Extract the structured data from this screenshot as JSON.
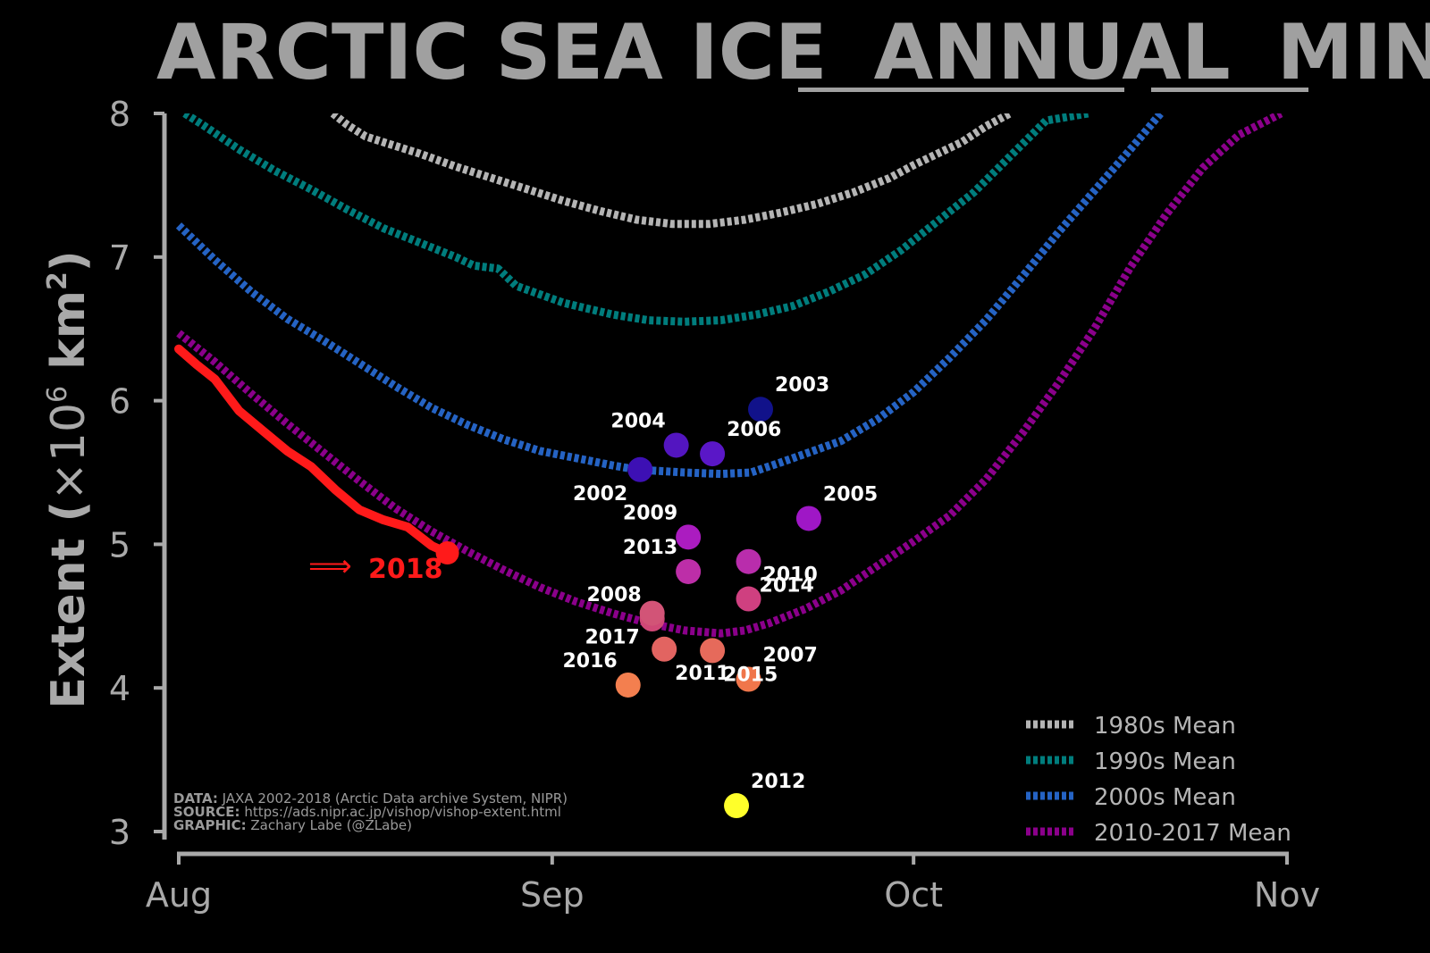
{
  "title": {
    "part1": "ARCTIC SEA ICE",
    "part2": "ANNUAL",
    "part3": "MIN"
  },
  "chart_data": {
    "type": "line",
    "title": "ARCTIC SEA ICE ANNUAL MIN",
    "ylabel": "Extent (×10⁶ km²)",
    "ylabel_main": "Extent (",
    "ylabel_times": "×10",
    "ylabel_exp": "6",
    "ylabel_unit": " km",
    "ylabel_sq": "2",
    "ylabel_close": ")",
    "xlabel": "",
    "ylim": [
      3,
      8
    ],
    "xlim": [
      0,
      92
    ],
    "xticks": [
      {
        "day": 0,
        "label": "Aug"
      },
      {
        "day": 31,
        "label": "Sep"
      },
      {
        "day": 61,
        "label": "Oct"
      },
      {
        "day": 92,
        "label": "Nov"
      }
    ],
    "yticks": [
      3,
      4,
      5,
      6,
      7,
      8
    ],
    "legend_position": "bottom-right",
    "series": [
      {
        "name": "1980s Mean",
        "color": "#b4b4b4",
        "x": [
          12.8,
          14,
          15.5,
          17,
          20,
          23,
          26,
          29,
          32,
          35,
          38,
          41,
          44,
          47,
          50,
          53,
          56,
          59,
          61,
          63,
          65,
          67,
          69
        ],
        "y": [
          8.0,
          7.92,
          7.84,
          7.8,
          7.72,
          7.63,
          7.55,
          7.47,
          7.39,
          7.32,
          7.26,
          7.23,
          7.23,
          7.26,
          7.31,
          7.37,
          7.45,
          7.55,
          7.64,
          7.72,
          7.8,
          7.91,
          8.0
        ]
      },
      {
        "name": "1990s Mean",
        "color": "#007d7d",
        "x": [
          0.5,
          2,
          5,
          8,
          11,
          14,
          17,
          20,
          23,
          24.5,
          26.5,
          28,
          32,
          36,
          39,
          42,
          45,
          48,
          51,
          54,
          57,
          60,
          63,
          66,
          69,
          72,
          75.5
        ],
        "y": [
          8.0,
          7.92,
          7.75,
          7.6,
          7.47,
          7.33,
          7.2,
          7.1,
          7.0,
          6.94,
          6.92,
          6.8,
          6.68,
          6.6,
          6.56,
          6.55,
          6.56,
          6.6,
          6.66,
          6.76,
          6.88,
          7.05,
          7.25,
          7.45,
          7.7,
          7.95,
          8.0
        ]
      },
      {
        "name": "2000s Mean",
        "color": "#2563c4",
        "x": [
          0,
          3,
          6,
          9,
          12,
          15,
          18,
          21,
          24,
          27,
          30,
          33,
          36,
          38,
          40,
          42,
          45,
          47.5,
          50,
          52,
          55,
          58,
          61,
          64,
          67,
          70,
          73,
          76,
          79,
          81.5
        ],
        "y": [
          7.22,
          6.98,
          6.76,
          6.57,
          6.42,
          6.26,
          6.1,
          5.95,
          5.83,
          5.73,
          5.65,
          5.6,
          5.55,
          5.52,
          5.51,
          5.5,
          5.49,
          5.5,
          5.57,
          5.63,
          5.72,
          5.87,
          6.06,
          6.3,
          6.56,
          6.86,
          7.17,
          7.46,
          7.75,
          8.0
        ]
      },
      {
        "name": "2010-2017 Mean",
        "color": "#8b008b",
        "x": [
          0,
          3,
          6,
          9,
          12,
          15,
          18,
          21,
          24,
          27,
          30,
          33,
          36,
          39,
          42,
          45,
          47,
          49,
          52,
          55,
          58,
          61,
          64,
          67,
          70,
          73,
          76,
          79,
          82,
          85,
          88,
          91.5
        ],
        "y": [
          6.47,
          6.27,
          6.05,
          5.84,
          5.64,
          5.44,
          5.25,
          5.09,
          4.95,
          4.82,
          4.7,
          4.6,
          4.52,
          4.45,
          4.4,
          4.38,
          4.4,
          4.45,
          4.55,
          4.68,
          4.85,
          5.02,
          5.2,
          5.45,
          5.77,
          6.12,
          6.5,
          6.93,
          7.3,
          7.62,
          7.85,
          8.0
        ]
      },
      {
        "name": "2018",
        "color": "#ff1a1a",
        "x": [
          0,
          1.5,
          3,
          5,
          7,
          9,
          11,
          13,
          15,
          17,
          19,
          21,
          22.3
        ],
        "y": [
          6.36,
          6.25,
          6.15,
          5.93,
          5.79,
          5.65,
          5.54,
          5.38,
          5.24,
          5.17,
          5.12,
          4.99,
          4.94
        ]
      }
    ],
    "annual_minima": [
      {
        "year": "2002",
        "day": 38.3,
        "value": 5.52,
        "color": "#3d10b4",
        "label_pos": "bl"
      },
      {
        "year": "2003",
        "day": 48.3,
        "value": 5.94,
        "color": "#11128a",
        "label_pos": "tr"
      },
      {
        "year": "2004",
        "day": 41.3,
        "value": 5.69,
        "color": "#5315c0",
        "label_pos": "tl"
      },
      {
        "year": "2005",
        "day": 52.3,
        "value": 5.18,
        "color": "#9f17c6",
        "label_pos": "tr"
      },
      {
        "year": "2006",
        "day": 44.3,
        "value": 5.63,
        "color": "#5a17c7",
        "label_pos": "tr"
      },
      {
        "year": "2007",
        "day": 47.3,
        "value": 4.06,
        "color": "#f0764b",
        "label_pos": "tr"
      },
      {
        "year": "2008",
        "day": 39.3,
        "value": 4.48,
        "color": "#d04876",
        "label_pos": "tl"
      },
      {
        "year": "2009",
        "day": 42.3,
        "value": 5.05,
        "color": "#ab1cc0",
        "label_pos": "tl"
      },
      {
        "year": "2010",
        "day": 47.3,
        "value": 4.62,
        "color": "#cf4080",
        "label_pos": "tr"
      },
      {
        "year": "2011",
        "day": 40.3,
        "value": 4.27,
        "color": "#e26461",
        "label_pos": "br"
      },
      {
        "year": "2012",
        "day": 46.3,
        "value": 3.18,
        "color": "#ffff2a",
        "label_pos": "tr"
      },
      {
        "year": "2013",
        "day": 42.3,
        "value": 4.81,
        "color": "#bd2ea8",
        "label_pos": "tl"
      },
      {
        "year": "2014",
        "day": 47.3,
        "value": 4.88,
        "color": "#b92dac",
        "label_pos": "br"
      },
      {
        "year": "2015",
        "day": 44.3,
        "value": 4.26,
        "color": "#e66a5b",
        "label_pos": "br"
      },
      {
        "year": "2016",
        "day": 37.3,
        "value": 4.02,
        "color": "#f37f4f",
        "label_pos": "tl"
      },
      {
        "year": "2017",
        "day": 39.3,
        "value": 4.52,
        "color": "#d25477",
        "label_pos": "bl"
      },
      {
        "year": "2018",
        "day": 22.3,
        "value": 4.94,
        "color": "#ff1a1a",
        "label_pos": "l"
      }
    ],
    "annotation": {
      "arrow": "⟹",
      "text": "2018",
      "color": "#ff1a1a"
    }
  },
  "credits": [
    {
      "key": "DATA:",
      "value": " JAXA 2002-2018 (Arctic Data archive System, NIPR)"
    },
    {
      "key": "SOURCE:",
      "value": " https://ads.nipr.ac.jp/vishop/vishop-extent.html"
    },
    {
      "key": "GRAPHIC:",
      "value": " Zachary Labe (@ZLabe)"
    }
  ]
}
